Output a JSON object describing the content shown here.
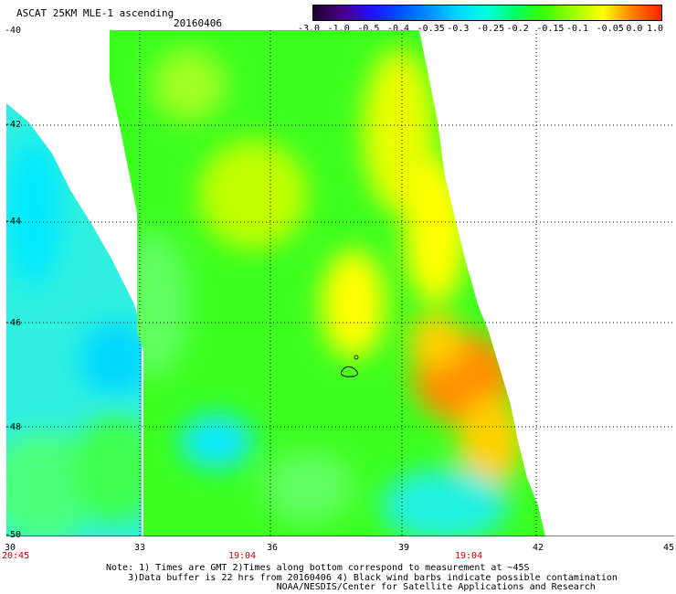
{
  "header": {
    "title": "ASCAT 25KM MLE-1 ascending",
    "date": "20160406"
  },
  "colorbar": {
    "labels": [
      "-3.0",
      "-1.0",
      "-0.5",
      "-0.4",
      "-0.35",
      "-0.3",
      "-0.25",
      "-0.2",
      "-0.15",
      "-0.1",
      "-0.05",
      "0.0",
      "1.0"
    ],
    "colors": [
      "#1a0030",
      "#4b0082",
      "#2010ff",
      "#0050ff",
      "#0090ff",
      "#00d8ff",
      "#00ffe0",
      "#00ff60",
      "#40ff00",
      "#a0ff00",
      "#ffff00",
      "#ff8000",
      "#ff2000"
    ]
  },
  "map": {
    "lon_ticks": [
      "30",
      "33",
      "36",
      "39",
      "42",
      "45"
    ],
    "lat_ticks": [
      "-40",
      "-42",
      "-44",
      "-46",
      "-48",
      "-50"
    ],
    "times": [
      "20:45",
      "19:04",
      "19:04"
    ]
  },
  "notes": [
    "Note: 1) Times are GMT 2)Times along bottom correspond to measurement at ~45S",
    "    3)Data buffer is 22 hrs from 20160406 4) Black wind barbs indicate possible contamination",
    "                               NOAA/NESDIS/Center for Satellite Applications and Research"
  ]
}
